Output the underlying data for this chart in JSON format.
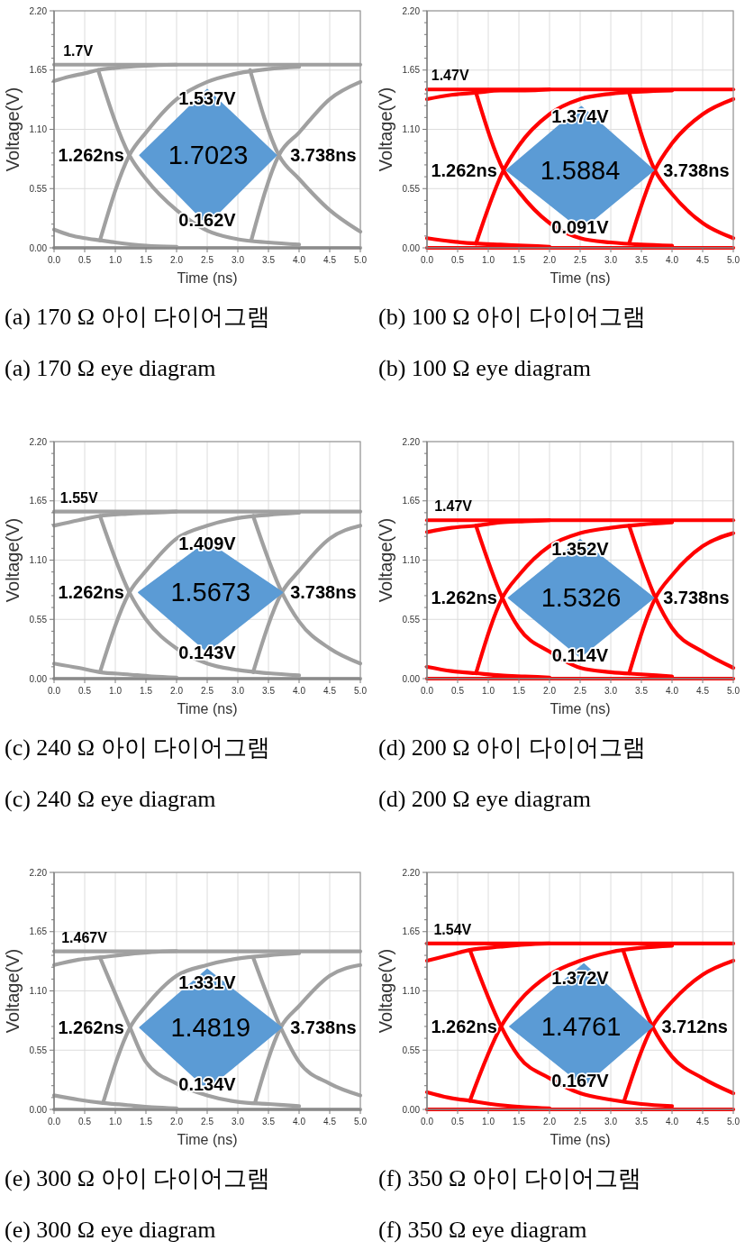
{
  "chart_data": [
    {
      "type": "line",
      "title": "(a) 170 Ω 아이 다이어그램",
      "subtitle": "(a) 170 Ω eye diagram",
      "xlabel": "Time (ns)",
      "ylabel": "Voltage(V)",
      "xlim": [
        0,
        5
      ],
      "ylim": [
        0,
        2.2
      ],
      "xticks": [
        {
          "value": 0,
          "label": "0.0"
        },
        {
          "value": 0.5,
          "label": "0.5"
        },
        {
          "value": 1,
          "label": "1.0"
        },
        {
          "value": 1.5,
          "label": "1.5"
        },
        {
          "value": 2,
          "label": "2.0"
        },
        {
          "value": 2.5,
          "label": "2.5"
        },
        {
          "value": 3,
          "label": "3.0"
        },
        {
          "value": 3.5,
          "label": "3.5"
        },
        {
          "value": 4,
          "label": "4.0"
        },
        {
          "value": 4.5,
          "label": "4.5"
        },
        {
          "value": 5,
          "label": "5.0"
        }
      ],
      "yticks": [
        {
          "value": 0,
          "label": "0.00"
        },
        {
          "value": 0.55,
          "label": "0.55"
        },
        {
          "value": 1.1,
          "label": "1.10"
        },
        {
          "value": 1.65,
          "label": "1.65"
        },
        {
          "value": 2.2,
          "label": "2.20"
        }
      ],
      "grid": true,
      "series": [
        {
          "color": "#a0a0a0",
          "x": [
            0,
            5
          ],
          "values": [
            1.7,
            1.7
          ]
        },
        {
          "color": "#a0a0a0",
          "x": [
            0,
            5
          ],
          "values": [
            0,
            0
          ]
        },
        {
          "color": "#a0a0a0",
          "x": [
            0,
            0.25,
            0.5,
            0.72,
            1.0,
            1.5,
            2.0
          ],
          "values": [
            1.55,
            1.59,
            1.62,
            1.65,
            1.67,
            1.69,
            1.7
          ]
        },
        {
          "color": "#a0a0a0",
          "x": [
            0,
            0.25,
            0.5,
            0.75,
            1.0,
            1.5,
            2.0
          ],
          "values": [
            0.17,
            0.12,
            0.09,
            0.07,
            0.05,
            0.02,
            0.01
          ]
        },
        {
          "color": "#a0a0a0",
          "x": [
            0.72,
            1.23,
            1.5,
            2.0,
            2.5,
            3.0,
            3.5,
            4.0
          ],
          "values": [
            1.65,
            0.86,
            0.64,
            0.35,
            0.16,
            0.08,
            0.05,
            0.03
          ]
        },
        {
          "color": "#a0a0a0",
          "x": [
            0.75,
            1.23,
            1.5,
            2.0,
            2.5,
            3.0,
            3.5,
            4.0
          ],
          "values": [
            0.07,
            0.86,
            1.07,
            1.38,
            1.54,
            1.62,
            1.66,
            1.68
          ]
        },
        {
          "color": "#a0a0a0",
          "x": [
            3.2,
            3.67,
            4.0,
            4.5,
            5.0
          ],
          "values": [
            1.65,
            0.86,
            0.64,
            0.35,
            0.15
          ]
        },
        {
          "color": "#a0a0a0",
          "x": [
            3.22,
            3.67,
            4.0,
            4.5,
            5.0
          ],
          "values": [
            0.07,
            0.86,
            1.07,
            1.38,
            1.54
          ]
        },
        {
          "type": "area",
          "color": "#5b9bd5",
          "x": [
            1.4,
            2.5,
            3.63
          ],
          "values": [
            null,
            null,
            null
          ],
          "lower": [
            0.86,
            0.22,
            0.86
          ],
          "upper": [
            0.86,
            1.47,
            0.86
          ]
        }
      ],
      "annotations": [
        {
          "text": "1.7V",
          "x": 0.15,
          "y": 1.7
        },
        {
          "text": "1.537V",
          "x": 2.5,
          "y": 1.537
        },
        {
          "text": "1.262ns",
          "x": 1.262,
          "y": 0.86
        },
        "1.7023",
        {
          "text": "3.738ns",
          "x": 3.738,
          "y": 0.86
        },
        {
          "text": "0.162V",
          "x": 2.5,
          "y": 0.162
        }
      ]
    },
    {
      "type": "line",
      "title": "(b) 100 Ω 아이 다이어그램",
      "subtitle": "(b) 100 Ω eye diagram",
      "xlabel": "Time (ns)",
      "ylabel": "Voltage(V)",
      "xlim": [
        0,
        5
      ],
      "ylim": [
        0,
        2.2
      ],
      "xticks": [
        {
          "value": 0,
          "label": "0.0"
        },
        {
          "value": 0.5,
          "label": "0.5"
        },
        {
          "value": 1,
          "label": "1.0"
        },
        {
          "value": 1.5,
          "label": "1.5"
        },
        {
          "value": 2,
          "label": "2.0"
        },
        {
          "value": 2.5,
          "label": "2.5"
        },
        {
          "value": 3,
          "label": "3.0"
        },
        {
          "value": 3.5,
          "label": "3.5"
        },
        {
          "value": 4,
          "label": "4.0"
        },
        {
          "value": 4.5,
          "label": "4.5"
        },
        {
          "value": 5,
          "label": "5.0"
        }
      ],
      "yticks": [
        {
          "value": 0,
          "label": "0.00"
        },
        {
          "value": 0.55,
          "label": "0.55"
        },
        {
          "value": 1.1,
          "label": "1.10"
        },
        {
          "value": 1.65,
          "label": "1.65"
        },
        {
          "value": 2.2,
          "label": "2.20"
        }
      ],
      "grid": true,
      "series": [
        {
          "color": "#ff0000",
          "x": [
            0,
            5
          ],
          "values": [
            1.47,
            1.47
          ]
        },
        {
          "color": "#ff0000",
          "x": [
            0,
            5
          ],
          "values": [
            0,
            0
          ]
        },
        {
          "color": "#ff0000",
          "x": [
            0,
            0.4,
            0.8,
            1.2,
            1.6,
            2.0
          ],
          "values": [
            1.38,
            1.42,
            1.44,
            1.46,
            1.46,
            1.47
          ]
        },
        {
          "color": "#ff0000",
          "x": [
            0,
            0.4,
            0.8,
            1.2,
            1.6,
            2.0
          ],
          "values": [
            0.09,
            0.06,
            0.04,
            0.03,
            0.02,
            0.01
          ]
        },
        {
          "color": "#ff0000",
          "x": [
            0.8,
            1.25,
            1.5,
            2.0,
            2.5,
            3.0,
            3.5,
            4.0
          ],
          "values": [
            1.44,
            0.72,
            0.52,
            0.23,
            0.09,
            0.05,
            0.03,
            0.02
          ]
        },
        {
          "color": "#ff0000",
          "x": [
            0.8,
            1.25,
            1.5,
            2.0,
            2.5,
            3.0,
            3.5,
            4.0
          ],
          "values": [
            0.04,
            0.72,
            0.95,
            1.24,
            1.38,
            1.43,
            1.45,
            1.46
          ]
        },
        {
          "color": "#ff0000",
          "x": [
            3.3,
            3.72,
            4.0,
            4.5,
            5.0
          ],
          "values": [
            1.44,
            0.72,
            0.5,
            0.23,
            0.09
          ]
        },
        {
          "color": "#ff0000",
          "x": [
            3.3,
            3.72,
            4.0,
            4.5,
            5.0
          ],
          "values": [
            0.04,
            0.72,
            0.97,
            1.24,
            1.38
          ]
        },
        {
          "type": "area",
          "color": "#5b9bd5",
          "x": [
            1.3,
            2.52,
            3.7
          ],
          "values": [
            null,
            null,
            null
          ],
          "lower": [
            0.72,
            0.17,
            0.72
          ],
          "upper": [
            0.72,
            1.31,
            0.72
          ]
        }
      ],
      "annotations": [
        {
          "text": "1.47V",
          "x": 0.07,
          "y": 1.47
        },
        {
          "text": "1.374V",
          "x": 2.5,
          "y": 1.374
        },
        {
          "text": "1.262ns",
          "x": 1.262,
          "y": 0.72
        },
        "1.5884",
        {
          "text": "3.738ns",
          "x": 3.738,
          "y": 0.72
        },
        {
          "text": "0.091V",
          "x": 2.5,
          "y": 0.091
        }
      ]
    },
    {
      "type": "line",
      "title": "(c) 240 Ω 아이 다이어그램",
      "subtitle": "(c) 240 Ω eye diagram",
      "xlabel": "Time (ns)",
      "ylabel": "Voltage(V)",
      "xlim": [
        0,
        5
      ],
      "ylim": [
        0,
        2.2
      ],
      "xticks": [
        {
          "value": 0,
          "label": "0.0"
        },
        {
          "value": 0.5,
          "label": "0.5"
        },
        {
          "value": 1,
          "label": "1.0"
        },
        {
          "value": 1.5,
          "label": "1.5"
        },
        {
          "value": 2,
          "label": "2.0"
        },
        {
          "value": 2.5,
          "label": "2.5"
        },
        {
          "value": 3,
          "label": "3.0"
        },
        {
          "value": 3.5,
          "label": "3.5"
        },
        {
          "value": 4,
          "label": "4.0"
        },
        {
          "value": 4.5,
          "label": "4.5"
        },
        {
          "value": 5,
          "label": "5.0"
        }
      ],
      "yticks": [
        {
          "value": 0,
          "label": "0.00"
        },
        {
          "value": 0.55,
          "label": "0.55"
        },
        {
          "value": 1.1,
          "label": "1.10"
        },
        {
          "value": 1.65,
          "label": "1.65"
        },
        {
          "value": 2.2,
          "label": "2.20"
        }
      ],
      "grid": true,
      "series": [
        {
          "color": "#a0a0a0",
          "x": [
            0,
            5
          ],
          "values": [
            1.55,
            1.55
          ]
        },
        {
          "color": "#a0a0a0",
          "x": [
            0,
            5
          ],
          "values": [
            0,
            0
          ]
        },
        {
          "color": "#a0a0a0",
          "x": [
            0,
            0.4,
            0.75,
            1.2,
            1.6,
            2.0
          ],
          "values": [
            1.42,
            1.47,
            1.51,
            1.53,
            1.54,
            1.55
          ]
        },
        {
          "color": "#a0a0a0",
          "x": [
            0,
            0.4,
            0.75,
            1.2,
            1.6,
            2.0
          ],
          "values": [
            0.14,
            0.1,
            0.06,
            0.04,
            0.02,
            0.01
          ]
        },
        {
          "color": "#a0a0a0",
          "x": [
            0.75,
            1.23,
            1.5,
            2.0,
            2.5,
            3.0,
            3.5,
            4.0
          ],
          "values": [
            1.51,
            0.8,
            0.55,
            0.28,
            0.14,
            0.08,
            0.05,
            0.03
          ]
        },
        {
          "color": "#a0a0a0",
          "x": [
            0.75,
            1.23,
            1.5,
            2.0,
            2.5,
            3.0,
            3.5,
            4.0
          ],
          "values": [
            0.06,
            0.8,
            1.0,
            1.3,
            1.42,
            1.49,
            1.52,
            1.54
          ]
        },
        {
          "color": "#a0a0a0",
          "x": [
            3.25,
            3.72,
            4.0,
            4.5,
            5.0
          ],
          "values": [
            1.51,
            0.8,
            0.53,
            0.28,
            0.14
          ]
        },
        {
          "color": "#a0a0a0",
          "x": [
            3.25,
            3.72,
            4.0,
            4.5,
            5.0
          ],
          "values": [
            0.06,
            0.8,
            1.0,
            1.3,
            1.42
          ]
        },
        {
          "type": "area",
          "color": "#5b9bd5",
          "x": [
            1.38,
            2.5,
            3.73
          ],
          "values": [
            null,
            null,
            null
          ],
          "lower": [
            0.8,
            0.25,
            0.8
          ],
          "upper": [
            0.8,
            1.27,
            0.8
          ]
        }
      ],
      "annotations": [
        {
          "text": "1.55V",
          "x": 0.1,
          "y": 1.55
        },
        {
          "text": "1.409V",
          "x": 2.5,
          "y": 1.409
        },
        {
          "text": "1.262ns",
          "x": 1.262,
          "y": 0.8
        },
        "1.5673",
        {
          "text": "3.738ns",
          "x": 3.738,
          "y": 0.8
        },
        {
          "text": "0.143V",
          "x": 2.5,
          "y": 0.143
        }
      ]
    },
    {
      "type": "line",
      "title": "(d) 200 Ω 아이 다이어그램",
      "subtitle": "(d) 200 Ω eye diagram",
      "xlabel": "Time (ns)",
      "ylabel": "Voltage(V)",
      "xlim": [
        0,
        5
      ],
      "ylim": [
        0,
        2.2
      ],
      "xticks": [
        {
          "value": 0,
          "label": "0.0"
        },
        {
          "value": 0.5,
          "label": "0.5"
        },
        {
          "value": 1,
          "label": "1.0"
        },
        {
          "value": 1.5,
          "label": "1.5"
        },
        {
          "value": 2,
          "label": "2.0"
        },
        {
          "value": 2.5,
          "label": "2.5"
        },
        {
          "value": 3,
          "label": "3.0"
        },
        {
          "value": 3.5,
          "label": "3.5"
        },
        {
          "value": 4,
          "label": "4.0"
        },
        {
          "value": 4.5,
          "label": "4.5"
        },
        {
          "value": 5,
          "label": "5.0"
        }
      ],
      "yticks": [
        {
          "value": 0,
          "label": "0.00"
        },
        {
          "value": 0.55,
          "label": "0.55"
        },
        {
          "value": 1.1,
          "label": "1.10"
        },
        {
          "value": 1.65,
          "label": "1.65"
        },
        {
          "value": 2.2,
          "label": "2.20"
        }
      ],
      "grid": true,
      "series": [
        {
          "color": "#ff0000",
          "x": [
            0,
            5
          ],
          "values": [
            1.47,
            1.47
          ]
        },
        {
          "color": "#ff0000",
          "x": [
            0,
            5
          ],
          "values": [
            0,
            0
          ]
        },
        {
          "color": "#ff0000",
          "x": [
            0,
            0.4,
            0.8,
            1.2,
            1.6,
            2.0
          ],
          "values": [
            1.36,
            1.4,
            1.42,
            1.45,
            1.46,
            1.47
          ]
        },
        {
          "color": "#ff0000",
          "x": [
            0,
            0.4,
            0.8,
            1.2,
            1.6,
            2.0
          ],
          "values": [
            0.11,
            0.07,
            0.05,
            0.03,
            0.02,
            0.01
          ]
        },
        {
          "color": "#ff0000",
          "x": [
            0.8,
            1.23,
            1.5,
            2.0,
            2.5,
            3.0,
            3.5,
            4.0
          ],
          "values": [
            1.42,
            0.75,
            0.47,
            0.25,
            0.1,
            0.06,
            0.04,
            0.02
          ]
        },
        {
          "color": "#ff0000",
          "x": [
            0.8,
            1.23,
            1.5,
            2.0,
            2.5,
            3.0,
            3.5,
            4.0
          ],
          "values": [
            0.05,
            0.75,
            0.96,
            1.23,
            1.35,
            1.4,
            1.43,
            1.45
          ]
        },
        {
          "color": "#ff0000",
          "x": [
            3.3,
            3.73,
            4.0,
            4.5,
            5.0
          ],
          "values": [
            1.42,
            0.75,
            0.47,
            0.25,
            0.1
          ]
        },
        {
          "color": "#ff0000",
          "x": [
            3.3,
            3.73,
            4.0,
            4.5,
            5.0
          ],
          "values": [
            0.05,
            0.75,
            0.96,
            1.23,
            1.35
          ]
        },
        {
          "type": "area",
          "color": "#5b9bd5",
          "x": [
            1.33,
            2.5,
            3.7
          ],
          "values": [
            null,
            null,
            null
          ],
          "lower": [
            0.75,
            0.2,
            0.75
          ],
          "upper": [
            0.75,
            1.29,
            0.75
          ]
        }
      ],
      "annotations": [
        {
          "text": "1.47V",
          "x": 0.12,
          "y": 1.47
        },
        {
          "text": "1.352V",
          "x": 2.5,
          "y": 1.352
        },
        {
          "text": "1.262ns",
          "x": 1.262,
          "y": 0.75
        },
        "1.5326",
        {
          "text": "3.738ns",
          "x": 3.738,
          "y": 0.75
        },
        {
          "text": "0.114V",
          "x": 2.5,
          "y": 0.114
        }
      ]
    },
    {
      "type": "line",
      "title": "(e) 300 Ω 아이 다이어그램",
      "subtitle": "(e) 300 Ω eye diagram",
      "xlabel": "Time (ns)",
      "ylabel": "Voltage(V)",
      "xlim": [
        0,
        5
      ],
      "ylim": [
        0,
        2.2
      ],
      "xticks": [
        {
          "value": 0,
          "label": "0.0"
        },
        {
          "value": 0.5,
          "label": "0.5"
        },
        {
          "value": 1,
          "label": "1.0"
        },
        {
          "value": 1.5,
          "label": "1.5"
        },
        {
          "value": 2,
          "label": "2.0"
        },
        {
          "value": 2.5,
          "label": "2.5"
        },
        {
          "value": 3,
          "label": "3.0"
        },
        {
          "value": 3.5,
          "label": "3.5"
        },
        {
          "value": 4,
          "label": "4.0"
        },
        {
          "value": 4.5,
          "label": "4.5"
        },
        {
          "value": 5,
          "label": "5.0"
        }
      ],
      "yticks": [
        {
          "value": 0,
          "label": "0.00"
        },
        {
          "value": 0.55,
          "label": "0.55"
        },
        {
          "value": 1.1,
          "label": "1.10"
        },
        {
          "value": 1.65,
          "label": "1.65"
        },
        {
          "value": 2.2,
          "label": "2.20"
        }
      ],
      "grid": true,
      "series": [
        {
          "color": "#a0a0a0",
          "x": [
            0,
            5
          ],
          "values": [
            1.467,
            1.467
          ]
        },
        {
          "color": "#a0a0a0",
          "x": [
            0,
            5
          ],
          "values": [
            0,
            0
          ]
        },
        {
          "color": "#a0a0a0",
          "x": [
            0,
            0.4,
            0.75,
            1.2,
            1.6,
            2.0
          ],
          "values": [
            1.34,
            1.39,
            1.41,
            1.44,
            1.46,
            1.47
          ]
        },
        {
          "color": "#a0a0a0",
          "x": [
            0,
            0.4,
            0.8,
            1.2,
            1.6,
            2.0
          ],
          "values": [
            0.13,
            0.09,
            0.06,
            0.04,
            0.02,
            0.01
          ]
        },
        {
          "color": "#a0a0a0",
          "x": [
            0.75,
            1.24,
            1.5,
            2.0,
            2.5,
            3.0,
            3.5,
            4.0
          ],
          "values": [
            1.41,
            0.76,
            0.44,
            0.24,
            0.13,
            0.07,
            0.05,
            0.03
          ]
        },
        {
          "color": "#a0a0a0",
          "x": [
            0.8,
            1.24,
            1.5,
            2.0,
            2.5,
            3.0,
            3.5,
            4.0
          ],
          "values": [
            0.06,
            0.76,
            0.96,
            1.24,
            1.34,
            1.4,
            1.43,
            1.45
          ]
        },
        {
          "color": "#a0a0a0",
          "x": [
            3.25,
            3.7,
            4.0,
            4.5,
            5.0
          ],
          "values": [
            1.41,
            0.76,
            0.44,
            0.24,
            0.13
          ]
        },
        {
          "color": "#a0a0a0",
          "x": [
            3.28,
            3.7,
            4.0,
            4.5,
            5.0
          ],
          "values": [
            0.06,
            0.76,
            0.96,
            1.24,
            1.34
          ]
        },
        {
          "type": "area",
          "color": "#5b9bd5",
          "x": [
            1.4,
            2.5,
            3.71
          ],
          "values": [
            null,
            null,
            null
          ],
          "lower": [
            0.76,
            0.19,
            0.76
          ],
          "upper": [
            0.76,
            1.3,
            0.76
          ]
        }
      ],
      "annotations": [
        {
          "text": "1.467V",
          "x": 0.12,
          "y": 1.467
        },
        {
          "text": "1.331V",
          "x": 2.5,
          "y": 1.331
        },
        {
          "text": "1.262ns",
          "x": 1.262,
          "y": 0.76
        },
        "1.4819",
        {
          "text": "3.738ns",
          "x": 3.738,
          "y": 0.76
        },
        {
          "text": "0.134V",
          "x": 2.5,
          "y": 0.134
        }
      ]
    },
    {
      "type": "line",
      "title": "(f) 350 Ω 아이 다이어그램",
      "subtitle": "(f) 350 Ω eye diagram",
      "xlabel": "Time (ns)",
      "ylabel": "Voltage(V)",
      "xlim": [
        0,
        5
      ],
      "ylim": [
        0,
        2.2
      ],
      "xticks": [
        {
          "value": 0,
          "label": "0.0"
        },
        {
          "value": 0.5,
          "label": "0.5"
        },
        {
          "value": 1,
          "label": "1.0"
        },
        {
          "value": 1.5,
          "label": "1.5"
        },
        {
          "value": 2,
          "label": "2.0"
        },
        {
          "value": 2.5,
          "label": "2.5"
        },
        {
          "value": 3,
          "label": "3.0"
        },
        {
          "value": 3.5,
          "label": "3.5"
        },
        {
          "value": 4,
          "label": "4.0"
        },
        {
          "value": 4.5,
          "label": "4.5"
        },
        {
          "value": 5,
          "label": "5.0"
        }
      ],
      "yticks": [
        {
          "value": 0,
          "label": "0.00"
        },
        {
          "value": 0.55,
          "label": "0.55"
        },
        {
          "value": 1.1,
          "label": "1.10"
        },
        {
          "value": 1.65,
          "label": "1.65"
        },
        {
          "value": 2.2,
          "label": "2.20"
        }
      ],
      "grid": true,
      "series": [
        {
          "color": "#ff0000",
          "x": [
            0,
            5
          ],
          "values": [
            1.54,
            1.54
          ]
        },
        {
          "color": "#ff0000",
          "x": [
            0,
            5
          ],
          "values": [
            0,
            0
          ]
        },
        {
          "color": "#ff0000",
          "x": [
            0,
            0.35,
            0.7,
            1.2,
            1.6,
            2.0
          ],
          "values": [
            1.38,
            1.43,
            1.48,
            1.51,
            1.53,
            1.54
          ]
        },
        {
          "color": "#ff0000",
          "x": [
            0,
            0.35,
            0.7,
            1.2,
            1.6,
            2.0
          ],
          "values": [
            0.16,
            0.11,
            0.08,
            0.04,
            0.02,
            0.01
          ]
        },
        {
          "color": "#ff0000",
          "x": [
            0.7,
            1.21,
            1.5,
            2.0,
            2.5,
            3.0,
            3.5,
            4.0
          ],
          "values": [
            1.48,
            0.77,
            0.49,
            0.29,
            0.15,
            0.09,
            0.05,
            0.03
          ]
        },
        {
          "color": "#ff0000",
          "x": [
            0.7,
            1.21,
            1.5,
            2.0,
            2.5,
            3.0,
            3.5,
            4.0
          ],
          "values": [
            0.08,
            0.77,
            1.0,
            1.25,
            1.38,
            1.46,
            1.5,
            1.52
          ]
        },
        {
          "color": "#ff0000",
          "x": [
            3.2,
            3.68,
            4.0,
            4.5,
            5.0
          ],
          "values": [
            1.48,
            0.77,
            0.49,
            0.29,
            0.15
          ]
        },
        {
          "color": "#ff0000",
          "x": [
            3.22,
            3.68,
            4.0,
            4.5,
            5.0
          ],
          "values": [
            0.08,
            0.77,
            1.0,
            1.25,
            1.38
          ]
        },
        {
          "type": "area",
          "color": "#5b9bd5",
          "x": [
            1.35,
            2.56,
            3.68
          ],
          "values": [
            null,
            null,
            null
          ],
          "lower": [
            0.77,
            0.22,
            0.77
          ],
          "upper": [
            0.77,
            1.35,
            0.77
          ]
        }
      ],
      "annotations": [
        {
          "text": "1.54V",
          "x": 0.11,
          "y": 1.54
        },
        {
          "text": "1.372V",
          "x": 2.5,
          "y": 1.372
        },
        {
          "text": "1.262ns",
          "x": 1.262,
          "y": 0.77
        },
        "1.4761",
        {
          "text": "3.712ns",
          "x": 3.712,
          "y": 0.77
        },
        {
          "text": "0.167V",
          "x": 2.5,
          "y": 0.167
        }
      ]
    }
  ]
}
